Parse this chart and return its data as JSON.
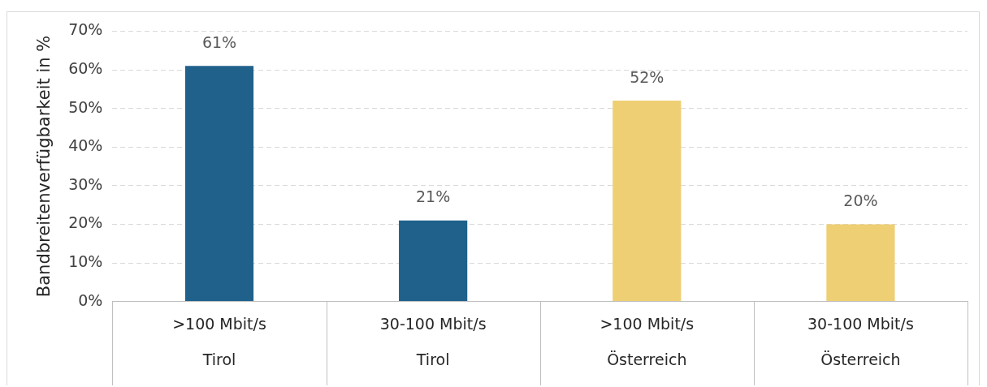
{
  "chart_data": {
    "type": "bar",
    "ylabel": "Bandbreitenverfügbarkeit in %",
    "categories": [
      ">100 Mbit/s\nTirol",
      "30-100 Mbit/s\nTirol",
      ">100 Mbit/s\nÖsterreich",
      "30-100 Mbit/s\nÖsterreich"
    ],
    "values": [
      61,
      21,
      52,
      20
    ],
    "colors": [
      "#20618c",
      "#20618c",
      "#eecf74",
      "#eecf74"
    ],
    "value_labels": [
      "61%",
      "21%",
      "52%",
      "20%"
    ],
    "ylim": [
      0,
      70
    ],
    "yticks": [
      {
        "value": 0,
        "label": "0%"
      },
      {
        "value": 10,
        "label": "10%"
      },
      {
        "value": 20,
        "label": "20%"
      },
      {
        "value": 30,
        "label": "30%"
      },
      {
        "value": 40,
        "label": "40%"
      },
      {
        "value": 50,
        "label": "50%"
      },
      {
        "value": 60,
        "label": "60%"
      },
      {
        "value": 70,
        "label": "70%"
      }
    ],
    "grid": "y",
    "legend": false
  }
}
